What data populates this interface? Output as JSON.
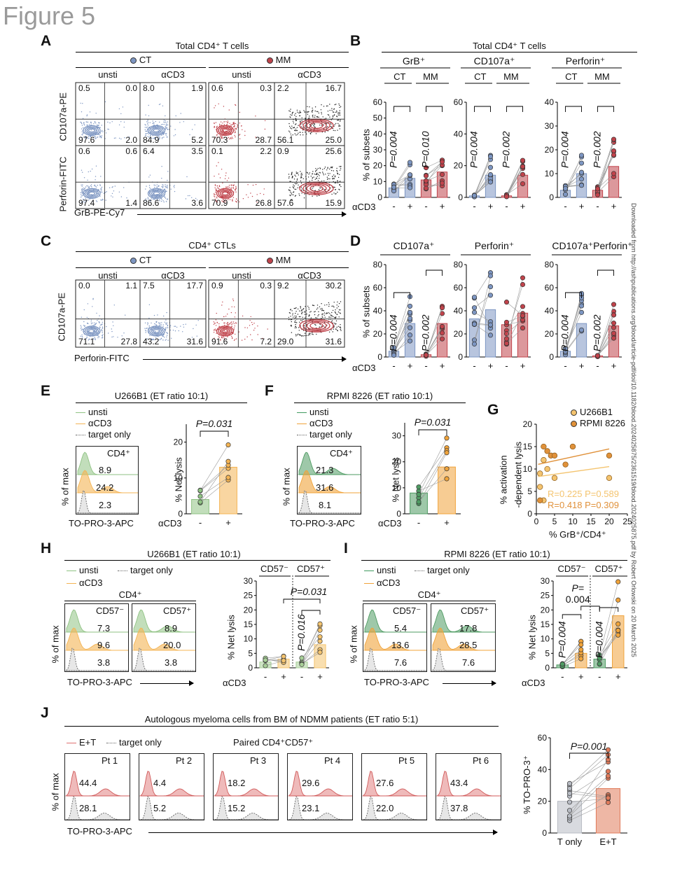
{
  "figure_title": "Figure 5",
  "watermark": "Downloaded from http://ashpublications.org/blood/article-pdf/doi/10.1182/blood.2024025875/2361519/blood.2024025875.pdf by Robert Orlowski on 20 March 2025",
  "colors": {
    "ct": "#7d96c2",
    "mm": "#c0434b",
    "green": "#8fc283",
    "orange": "#f4b454",
    "gray": "#b8bcc4",
    "red_et": "#e07b5b"
  },
  "A": {
    "label": "A",
    "title": "Total CD4⁺ T cells",
    "ct": "CT",
    "mm": "MM",
    "unsti": "unsti",
    "acd3": "αCD3",
    "row1": [
      "0.5",
      "0.0",
      "97.6",
      "2.0",
      "8.0",
      "1.9",
      "84.9",
      "5.2",
      "0.6",
      "0.3",
      "70.3",
      "28.7",
      "2.2",
      "16.7",
      "56.1",
      "25.0"
    ],
    "row2": [
      "0.6",
      "0.6",
      "97.4",
      "1.4",
      "6.4",
      "3.5",
      "86.6",
      "3.6",
      "0.1",
      "2.2",
      "70.9",
      "26.8",
      "0.9",
      "25.6",
      "57.6",
      "15.9"
    ],
    "ylab1": "CD107a-PE",
    "ylab2": "Perforin-FITC",
    "xlab": "GrB-PE-Cy7"
  },
  "B": {
    "label": "B",
    "title": "Total CD4⁺ T cells",
    "groups": [
      "GrB⁺",
      "CD107a⁺",
      "Perforin⁺"
    ],
    "ct": "CT",
    "mm": "MM",
    "ylab": "% of subsets",
    "acd3": "αCD3",
    "minus": "-",
    "plus": "+",
    "yticks1": [
      "0",
      "10",
      "20",
      "30",
      "40",
      "50",
      "60"
    ],
    "yticks2": [
      "0",
      "20",
      "40",
      "60"
    ],
    "yticks3": [
      "0",
      "10",
      "20",
      "30",
      "40"
    ],
    "p": [
      "P=0.004",
      "P=0.010",
      "P=0.004",
      "P=0.002",
      "P=0.004",
      "P=0.002"
    ]
  },
  "C": {
    "label": "C",
    "title": "CD4⁺ CTLs",
    "ct": "CT",
    "mm": "MM",
    "unsti": "unsti",
    "acd3": "αCD3",
    "vals": [
      "0.0",
      "1.1",
      "71.1",
      "27.8",
      "7.5",
      "17.7",
      "43.2",
      "31.6",
      "0.9",
      "0.3",
      "91.6",
      "7.2",
      "9.2",
      "30.2",
      "29.0",
      "31.6"
    ],
    "ylab": "CD107a-PE",
    "xlab": "Perforin-FITC"
  },
  "D": {
    "label": "D",
    "groups": [
      "CD107a⁺",
      "Perforin⁺",
      "CD107a⁺Perforin⁺"
    ],
    "ylab": "% of subsets",
    "acd3": "αCD3",
    "yticks": [
      "0",
      "20",
      "40",
      "60",
      "80"
    ],
    "p": [
      "P=0.004",
      "P=0.002",
      "P=0.004",
      "P=0.002"
    ],
    "minus": "-",
    "plus": "+"
  },
  "E": {
    "label": "E",
    "title": "U266B1 (ET ratio 10:1)",
    "leg": [
      "unsti",
      "αCD3",
      "target only"
    ],
    "cd4": "CD4⁺",
    "vals": [
      "8.9",
      "24.2",
      "2.3"
    ],
    "ylab": "% of max",
    "xlab": "TO-PRO-3-APC",
    "barylab": "% Net lysis",
    "p": "P=0.031",
    "yticks": [
      "0",
      "10",
      "20"
    ],
    "acd3": "αCD3"
  },
  "F": {
    "label": "F",
    "title": "RPMI 8226 (ET ratio 10:1)",
    "leg": [
      "unsti",
      "αCD3",
      "target only"
    ],
    "cd4": "CD4⁺",
    "vals": [
      "21.3",
      "31.6",
      "8.1"
    ],
    "ylab": "% of max",
    "xlab": "TO-PRO-3-APC",
    "barylab": "% Net lysis",
    "p": "P=0.031",
    "yticks": [
      "0",
      "10",
      "20",
      "30"
    ],
    "acd3": "αCD3"
  },
  "G": {
    "label": "G",
    "leg": [
      "U266B1",
      "RPMI 8226"
    ],
    "ylab1": "% activation",
    "ylab2": "-dependent lysis",
    "xlab": "% GrB⁺/CD4⁺",
    "xticks": [
      "0",
      "5",
      "10",
      "15",
      "20",
      "25"
    ],
    "yticks": [
      "0",
      "5",
      "10",
      "15",
      "20"
    ],
    "r1": "R=0.225 P=0.589",
    "r2": "R=0.418 P=0.309"
  },
  "H": {
    "label": "H",
    "title": "U266B1 (ET ratio 10:1)",
    "leg": [
      "unsti",
      "target only",
      "αCD3"
    ],
    "cd4": "CD4⁺",
    "h1": "CD57⁻",
    "h2": "CD57⁺",
    "v1": [
      "7.3",
      "9.6",
      "3.8"
    ],
    "v2": [
      "8.9",
      "20.0",
      "3.8"
    ],
    "ylab": "% of max",
    "xlab": "TO-PRO-3-APC",
    "barylab": "% Net lysis",
    "g1": "CD57⁻",
    "g2": "CD57⁺",
    "p1": "P=0.031",
    "p2": "P=0.016",
    "yticks": [
      "0",
      "5",
      "10",
      "15",
      "20",
      "25",
      "30"
    ],
    "acd3": "αCD3"
  },
  "I": {
    "label": "I",
    "title": "RPMI 8226 (ET ratio 10:1)",
    "leg": [
      "unsti",
      "target only",
      "αCD3"
    ],
    "cd4": "CD4⁺",
    "h1": "CD57⁻",
    "h2": "CD57⁺",
    "v1": [
      "5.4",
      "13.6",
      "7.6"
    ],
    "v2": [
      "17.8",
      "28.5",
      "7.6"
    ],
    "ylab": "% of max",
    "xlab": "TO-PRO-3-APC",
    "barylab": "% Net lysis",
    "g1": "CD57⁻",
    "g2": "CD57⁺",
    "p1": "P=0.004",
    "p2a": "P=",
    "p2b": "0.004",
    "p3": "P=0.004",
    "yticks": [
      "0",
      "5",
      "10",
      "15",
      "20",
      "25",
      "30"
    ],
    "acd3": "αCD3"
  },
  "J": {
    "label": "J",
    "title": "Autologous myeloma cells from BM of NDMM patients (ET ratio 5:1)",
    "leg": [
      "E+T",
      "target only"
    ],
    "paired": "Paired CD4⁺CD57⁺",
    "pts": [
      {
        "n": "Pt 1",
        "a": "44.4",
        "b": "28.1"
      },
      {
        "n": "Pt 2",
        "a": "4.4",
        "b": "5.2"
      },
      {
        "n": "Pt 3",
        "a": "18.2",
        "b": "15.2"
      },
      {
        "n": "Pt 4",
        "a": "29.6",
        "b": "23.1"
      },
      {
        "n": "Pt 5",
        "a": "27.6",
        "b": "22.0"
      },
      {
        "n": "Pt 6",
        "a": "43.4",
        "b": "37.8"
      }
    ],
    "ylab": "% of max",
    "xlab": "TO-PRO-3-APC",
    "barylab": "% TO-PRO-3⁺",
    "p": "P=0.001",
    "cats": [
      "T only",
      "E+T"
    ],
    "yticks": [
      "0",
      "20",
      "40",
      "60"
    ]
  },
  "chart_data": [
    {
      "type": "bar",
      "panel": "B-GrB+",
      "categories": [
        "CT -",
        "CT +",
        "MM -",
        "MM +"
      ],
      "values": [
        6,
        12,
        11,
        16
      ],
      "ylim": [
        0,
        60
      ],
      "ylabel": "% of subsets"
    },
    {
      "type": "bar",
      "panel": "B-CD107a+",
      "categories": [
        "CT -",
        "CT +",
        "MM -",
        "MM +"
      ],
      "values": [
        1,
        14,
        1,
        14
      ],
      "ylim": [
        0,
        60
      ]
    },
    {
      "type": "bar",
      "panel": "B-Perforin+",
      "categories": [
        "CT -",
        "CT +",
        "MM -",
        "MM +"
      ],
      "values": [
        3,
        10,
        3,
        13
      ],
      "ylim": [
        0,
        40
      ]
    },
    {
      "type": "bar",
      "panel": "D-CD107a+",
      "categories": [
        "CT -",
        "CT +",
        "MM -",
        "MM +"
      ],
      "values": [
        5,
        29,
        2,
        29
      ],
      "ylim": [
        0,
        80
      ],
      "ylabel": "% of subsets"
    },
    {
      "type": "bar",
      "panel": "D-Perforin+",
      "categories": [
        "CT -",
        "CT +",
        "MM -",
        "MM +"
      ],
      "values": [
        33,
        41,
        28,
        38
      ],
      "ylim": [
        0,
        80
      ]
    },
    {
      "type": "bar",
      "panel": "D-CD107a+Perforin+",
      "categories": [
        "CT -",
        "CT +",
        "MM -",
        "MM +"
      ],
      "values": [
        5,
        29,
        1,
        27
      ],
      "ylim": [
        0,
        80
      ]
    },
    {
      "type": "bar",
      "panel": "E",
      "categories": [
        "-",
        "+"
      ],
      "values": [
        4,
        13
      ],
      "ylim": [
        0,
        25
      ],
      "ylabel": "% Net lysis"
    },
    {
      "type": "bar",
      "panel": "F",
      "categories": [
        "-",
        "+"
      ],
      "values": [
        8,
        18
      ],
      "ylim": [
        0,
        35
      ],
      "ylabel": "% Net lysis"
    },
    {
      "type": "scatter",
      "panel": "G",
      "series": [
        {
          "name": "U266B1",
          "x": [
            1,
            2,
            3,
            5,
            10,
            20,
            1,
            2
          ],
          "y": [
            9,
            12,
            10,
            8,
            15,
            8,
            6,
            3
          ]
        },
        {
          "name": "RPMI 8226",
          "x": [
            2,
            3,
            4,
            5,
            8,
            10,
            20,
            1
          ],
          "y": [
            15,
            14,
            13,
            13,
            11,
            15,
            13,
            3
          ]
        }
      ],
      "xlim": [
        0,
        25
      ],
      "ylim": [
        0,
        20
      ],
      "xlabel": "% GrB⁺/CD4⁺"
    },
    {
      "type": "bar",
      "panel": "H",
      "categories": [
        "CD57- -",
        "CD57- +",
        "CD57+ -",
        "CD57+ +"
      ],
      "values": [
        2,
        3,
        2,
        8
      ],
      "ylim": [
        0,
        30
      ],
      "ylabel": "% Net lysis"
    },
    {
      "type": "bar",
      "panel": "I",
      "categories": [
        "CD57- -",
        "CD57- +",
        "CD57+ -",
        "CD57+ +"
      ],
      "values": [
        1,
        5,
        3,
        18
      ],
      "ylim": [
        0,
        30
      ],
      "ylabel": "% Net lysis"
    },
    {
      "type": "bar",
      "panel": "J",
      "categories": [
        "T only",
        "E+T"
      ],
      "values": [
        20,
        28
      ],
      "ylim": [
        0,
        60
      ],
      "ylabel": "% TO-PRO-3⁺"
    }
  ]
}
